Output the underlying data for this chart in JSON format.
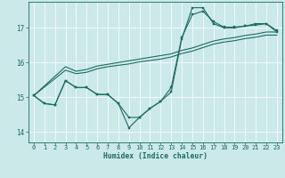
{
  "xlabel": "Humidex (Indice chaleur)",
  "bg_color": "#cce9ea",
  "line_color": "#1a6b60",
  "grid_color": "#ffffff",
  "xlim": [
    -0.5,
    23.5
  ],
  "ylim": [
    13.7,
    17.75
  ],
  "yticks": [
    14,
    15,
    16,
    17
  ],
  "xticks": [
    0,
    1,
    2,
    3,
    4,
    5,
    6,
    7,
    8,
    9,
    10,
    11,
    12,
    13,
    14,
    15,
    16,
    17,
    18,
    19,
    20,
    21,
    22,
    23
  ],
  "s1_x": [
    0,
    1,
    2,
    3,
    4,
    5,
    6,
    7,
    8,
    9,
    10,
    11,
    12,
    13,
    14,
    15,
    16,
    17,
    18,
    19,
    20,
    21,
    22,
    23
  ],
  "s1_y": [
    15.05,
    14.82,
    14.78,
    15.48,
    15.28,
    15.28,
    15.08,
    15.08,
    14.82,
    14.12,
    14.42,
    14.68,
    14.88,
    15.15,
    16.68,
    17.58,
    17.58,
    17.12,
    17.0,
    17.0,
    17.05,
    17.08,
    17.12,
    16.88
  ],
  "s2_x": [
    0,
    1,
    2,
    3,
    4,
    5,
    6,
    7,
    8,
    9,
    10,
    11,
    12,
    13,
    14,
    15,
    16,
    17,
    18,
    19,
    20,
    21,
    22,
    23
  ],
  "s2_y": [
    15.05,
    14.82,
    14.78,
    15.48,
    15.28,
    15.28,
    15.08,
    15.08,
    14.82,
    14.42,
    14.42,
    14.68,
    14.88,
    15.28,
    16.72,
    17.38,
    17.48,
    17.18,
    17.02,
    17.02,
    17.05,
    17.12,
    17.12,
    16.92
  ],
  "s3_x": [
    0,
    3,
    4,
    5,
    6,
    7,
    8,
    9,
    10,
    11,
    12,
    13,
    14,
    15,
    16,
    17,
    18,
    19,
    20,
    21,
    22,
    23
  ],
  "s3_y": [
    15.05,
    15.88,
    15.75,
    15.8,
    15.9,
    15.95,
    16.0,
    16.05,
    16.1,
    16.15,
    16.2,
    16.25,
    16.35,
    16.42,
    16.52,
    16.62,
    16.68,
    16.72,
    16.78,
    16.82,
    16.88,
    16.88
  ],
  "s4_x": [
    0,
    3,
    4,
    5,
    6,
    7,
    8,
    9,
    10,
    11,
    12,
    13,
    14,
    15,
    16,
    17,
    18,
    19,
    20,
    21,
    22,
    23
  ],
  "s4_y": [
    15.05,
    15.78,
    15.68,
    15.72,
    15.82,
    15.88,
    15.92,
    15.96,
    16.02,
    16.06,
    16.1,
    16.16,
    16.26,
    16.33,
    16.43,
    16.53,
    16.59,
    16.63,
    16.69,
    16.73,
    16.79,
    16.79
  ]
}
